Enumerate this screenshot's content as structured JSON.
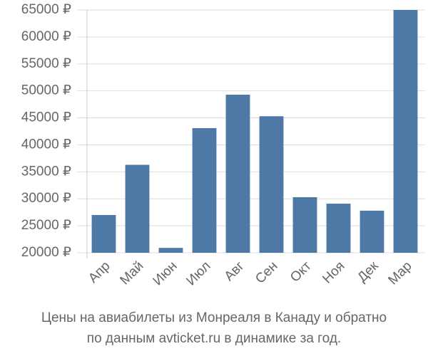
{
  "chart_data": {
    "type": "bar",
    "title": [
      "Цены на авиабилеты из Монреаля в Канаду и обратно",
      "по данным avticket.ru в динамике за год."
    ],
    "categories": [
      "Апр",
      "Май",
      "Июн",
      "Июл",
      "Авг",
      "Сен",
      "Окт",
      "Ноя",
      "Дек",
      "Мар"
    ],
    "values": [
      27000,
      36300,
      20900,
      43100,
      49300,
      45300,
      30300,
      29100,
      27800,
      65000
    ],
    "color": "#4e79a7",
    "ylim": [
      20000,
      65000
    ],
    "yticks": [
      {
        "value": 20000,
        "label": "20000 ₽"
      },
      {
        "value": 25000,
        "label": "25000 ₽"
      },
      {
        "value": 30000,
        "label": "30000 ₽"
      },
      {
        "value": 35000,
        "label": "35000 ₽"
      },
      {
        "value": 40000,
        "label": "40000 ₽"
      },
      {
        "value": 45000,
        "label": "45000 ₽"
      },
      {
        "value": 50000,
        "label": "50000 ₽"
      },
      {
        "value": 55000,
        "label": "55000 ₽"
      },
      {
        "value": 60000,
        "label": "60000 ₽"
      },
      {
        "value": 65000,
        "label": "65000 ₽"
      }
    ],
    "grid": true
  }
}
